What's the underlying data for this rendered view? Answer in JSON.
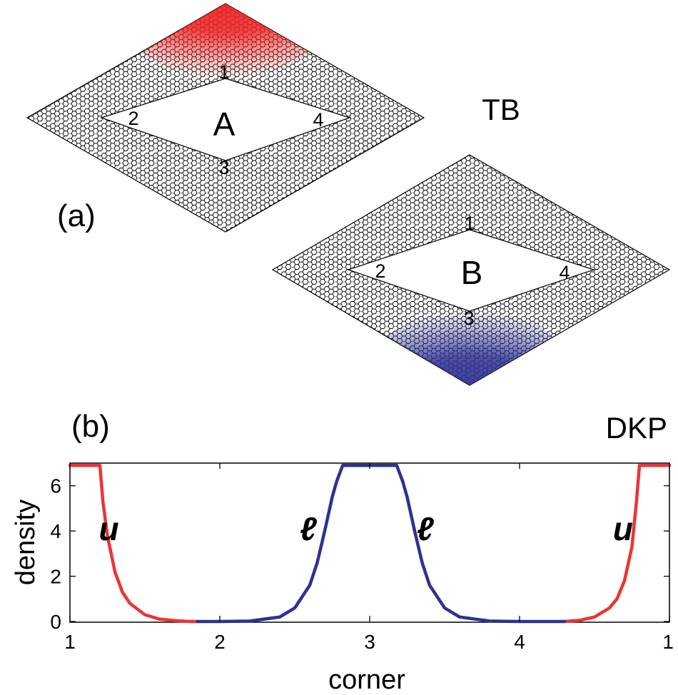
{
  "panel_a": {
    "label": "(a)",
    "method": "TB",
    "flake_a": {
      "name": "A",
      "corners": [
        "1",
        "2",
        "3",
        "4"
      ],
      "highlight_corner": "1",
      "highlight_color": "#ee2222"
    },
    "flake_b": {
      "name": "B",
      "corners": [
        "1",
        "2",
        "3",
        "4"
      ],
      "highlight_corner": "3",
      "highlight_color": "#2e3192"
    }
  },
  "panel_b": {
    "label": "(b)",
    "method": "DKP",
    "curve_labels": [
      {
        "text": "u",
        "color": "#000000",
        "x": 1.26,
        "y": 4.1
      },
      {
        "text": "ℓ",
        "color": "#000000",
        "x": 2.59,
        "y": 4.1
      },
      {
        "text": "ℓ",
        "color": "#000000",
        "x": 3.37,
        "y": 4.1
      },
      {
        "text": "u",
        "color": "#000000",
        "x": 4.69,
        "y": 4.1
      }
    ]
  },
  "chart_data": {
    "type": "line",
    "xlabel": "corner",
    "ylabel": "density",
    "xlim": [
      1,
      5
    ],
    "ylim": [
      0,
      7
    ],
    "x_ticks": [
      1,
      2,
      3,
      4,
      5
    ],
    "x_tick_labels": [
      "1",
      "2",
      "3",
      "4",
      "1"
    ],
    "y_ticks": [
      0,
      2,
      4,
      6
    ],
    "y_tick_labels": [
      "0",
      "2",
      "4",
      "6"
    ],
    "plateau": 6.9,
    "grid": false,
    "series": [
      {
        "color": "#ee3333",
        "segments": [
          {
            "x": [
              1.0,
              1.1,
              1.2,
              1.22,
              1.25,
              1.3,
              1.35,
              1.4,
              1.5,
              1.6,
              1.7,
              1.8,
              1.85
            ],
            "y": [
              6.9,
              6.9,
              6.9,
              5.3,
              3.8,
              2.2,
              1.3,
              0.8,
              0.3,
              0.1,
              0.04,
              0.0,
              0.0
            ]
          },
          {
            "x": [
              4.3,
              4.4,
              4.5,
              4.6,
              4.65,
              4.7,
              4.75,
              4.78,
              4.8,
              4.9,
              5.0
            ],
            "y": [
              0.0,
              0.05,
              0.2,
              0.6,
              1.0,
              1.8,
              3.3,
              5.3,
              6.9,
              6.9,
              6.9
            ]
          }
        ]
      },
      {
        "color": "#2e3192",
        "segments": [
          {
            "x": [
              1.85,
              2.0,
              2.2,
              2.4,
              2.5,
              2.6,
              2.65,
              2.7,
              2.75,
              2.78,
              2.82,
              2.9,
              3.0,
              3.1,
              3.18,
              3.22,
              3.25,
              3.3,
              3.35,
              3.4,
              3.5,
              3.6,
              3.8,
              4.0,
              4.3
            ],
            "y": [
              0.0,
              0.0,
              0.02,
              0.2,
              0.6,
              1.6,
              2.6,
              4.0,
              5.5,
              6.2,
              6.9,
              6.9,
              6.9,
              6.9,
              6.9,
              6.2,
              5.5,
              4.0,
              2.6,
              1.6,
              0.6,
              0.2,
              0.02,
              0.0,
              0.0
            ]
          }
        ]
      }
    ]
  }
}
